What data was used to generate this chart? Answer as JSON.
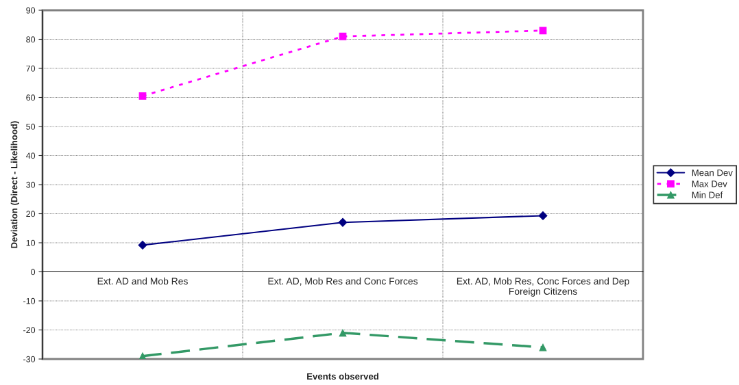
{
  "chart_data": {
    "type": "line",
    "xlabel": "Events observed",
    "ylabel": "Deviation (Direct - Likelihood)",
    "categories": [
      "Ext. AD and Mob Res",
      "Ext. AD, Mob Res and Conc Forces",
      "Ext. AD, Mob Res, Conc Forces and Dep Foreign Citizens"
    ],
    "series": [
      {
        "name": "Mean Dev",
        "color": "#000080",
        "values": [
          9.2,
          17,
          19.3
        ],
        "marker": "diamond",
        "line_style": "solid"
      },
      {
        "name": "Max Dev",
        "color": "#ff00ff",
        "values": [
          60.5,
          81,
          83
        ],
        "marker": "square",
        "line_style": "dotted"
      },
      {
        "name": "Min Def",
        "color": "#339966",
        "values": [
          -29,
          -21,
          -26
        ],
        "marker": "triangle",
        "line_style": "dashed"
      }
    ],
    "ylim": [
      -30,
      90
    ],
    "yticks": [
      -30,
      -20,
      -10,
      0,
      10,
      20,
      30,
      40,
      50,
      60,
      70,
      80,
      90
    ],
    "grid": true,
    "legend": "right"
  }
}
